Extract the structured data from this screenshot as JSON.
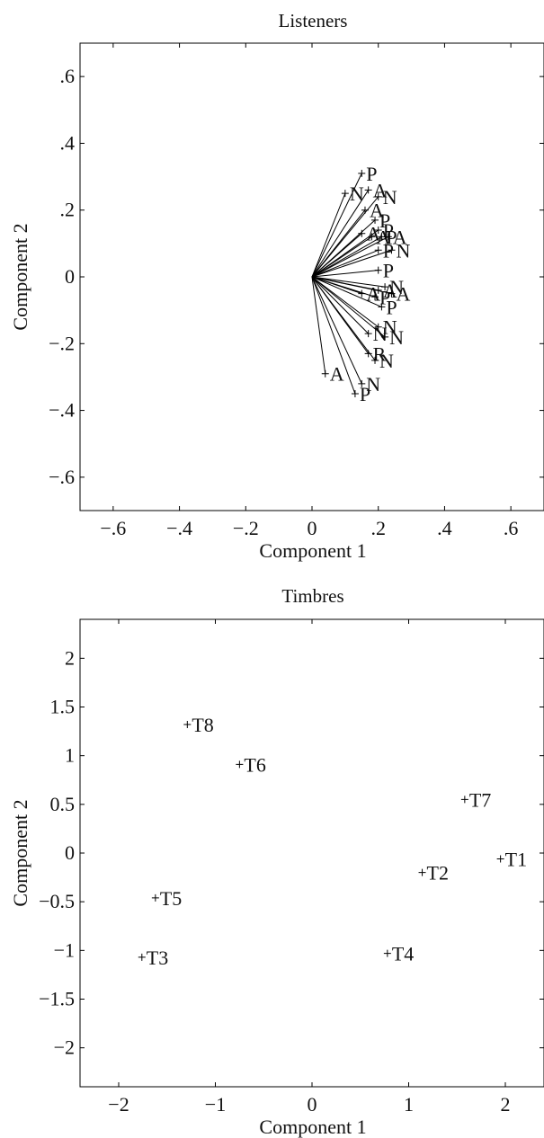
{
  "chart_data": [
    {
      "type": "scatter",
      "title": "Listeners",
      "xlabel": "Component 1",
      "ylabel": "Component 2",
      "xlim": [
        -0.7,
        0.7
      ],
      "ylim": [
        -0.7,
        0.7
      ],
      "x_ticks": [
        -0.6,
        -0.4,
        -0.2,
        0,
        0.2,
        0.4,
        0.6
      ],
      "x_tick_labels": [
        "−.6",
        "−.4",
        "−.2",
        "0",
        ".2",
        ".4",
        ".6"
      ],
      "y_ticks": [
        -0.6,
        -0.4,
        -0.2,
        0,
        0.2,
        0.4,
        0.6
      ],
      "y_tick_labels": [
        "−.6",
        "−.4",
        "−.2",
        "0",
        ".2",
        ".4",
        ".6"
      ],
      "vectors_from_origin": true,
      "points": [
        {
          "x": 0.15,
          "y": 0.31,
          "label": "P"
        },
        {
          "x": 0.1,
          "y": 0.25,
          "label": "N"
        },
        {
          "x": 0.17,
          "y": 0.26,
          "label": "A"
        },
        {
          "x": 0.2,
          "y": 0.24,
          "label": "N"
        },
        {
          "x": 0.16,
          "y": 0.2,
          "label": "A"
        },
        {
          "x": 0.19,
          "y": 0.17,
          "label": "P"
        },
        {
          "x": 0.2,
          "y": 0.14,
          "label": "P"
        },
        {
          "x": 0.15,
          "y": 0.13,
          "label": "A"
        },
        {
          "x": 0.18,
          "y": 0.12,
          "label": "A"
        },
        {
          "x": 0.21,
          "y": 0.12,
          "label": "P"
        },
        {
          "x": 0.23,
          "y": 0.12,
          "label": "A"
        },
        {
          "x": 0.24,
          "y": 0.08,
          "label": "N"
        },
        {
          "x": 0.2,
          "y": 0.08,
          "label": "P"
        },
        {
          "x": 0.2,
          "y": 0.02,
          "label": "P"
        },
        {
          "x": 0.15,
          "y": -0.05,
          "label": "A"
        },
        {
          "x": 0.2,
          "y": -0.04,
          "label": "A"
        },
        {
          "x": 0.22,
          "y": -0.03,
          "label": "N"
        },
        {
          "x": 0.24,
          "y": -0.05,
          "label": "A"
        },
        {
          "x": 0.19,
          "y": -0.06,
          "label": "P"
        },
        {
          "x": 0.21,
          "y": -0.09,
          "label": "P"
        },
        {
          "x": 0.2,
          "y": -0.15,
          "label": "N"
        },
        {
          "x": 0.17,
          "y": -0.17,
          "label": "N"
        },
        {
          "x": 0.22,
          "y": -0.18,
          "label": "N"
        },
        {
          "x": 0.17,
          "y": -0.23,
          "label": "R"
        },
        {
          "x": 0.19,
          "y": -0.25,
          "label": "N"
        },
        {
          "x": 0.04,
          "y": -0.29,
          "label": "A"
        },
        {
          "x": 0.15,
          "y": -0.32,
          "label": "N"
        },
        {
          "x": 0.13,
          "y": -0.35,
          "label": "P"
        }
      ]
    },
    {
      "type": "scatter",
      "title": "Timbres",
      "xlabel": "Component 1",
      "ylabel": "Component 2",
      "xlim": [
        -2.4,
        2.4
      ],
      "ylim": [
        -2.4,
        2.4
      ],
      "x_ticks": [
        -2,
        -1,
        0,
        1,
        2
      ],
      "x_tick_labels": [
        "−2",
        "−1",
        "0",
        "1",
        "2"
      ],
      "y_ticks": [
        -2,
        -1.5,
        -1,
        -0.5,
        0,
        0.5,
        1,
        1.5,
        2
      ],
      "y_tick_labels": [
        "−2",
        "−1.5",
        "−1",
        "−0.5",
        "0",
        "0.5",
        "1",
        "1.5",
        "2"
      ],
      "vectors_from_origin": false,
      "points": [
        {
          "x": 1.95,
          "y": -0.06,
          "label": "T1"
        },
        {
          "x": 1.14,
          "y": -0.2,
          "label": "T2"
        },
        {
          "x": -1.76,
          "y": -1.07,
          "label": "T3"
        },
        {
          "x": 0.78,
          "y": -1.03,
          "label": "T4"
        },
        {
          "x": -1.62,
          "y": -0.46,
          "label": "T5"
        },
        {
          "x": -0.75,
          "y": 0.91,
          "label": "T6"
        },
        {
          "x": 1.58,
          "y": 0.55,
          "label": "T7"
        },
        {
          "x": -1.29,
          "y": 1.32,
          "label": "T8"
        }
      ]
    }
  ]
}
